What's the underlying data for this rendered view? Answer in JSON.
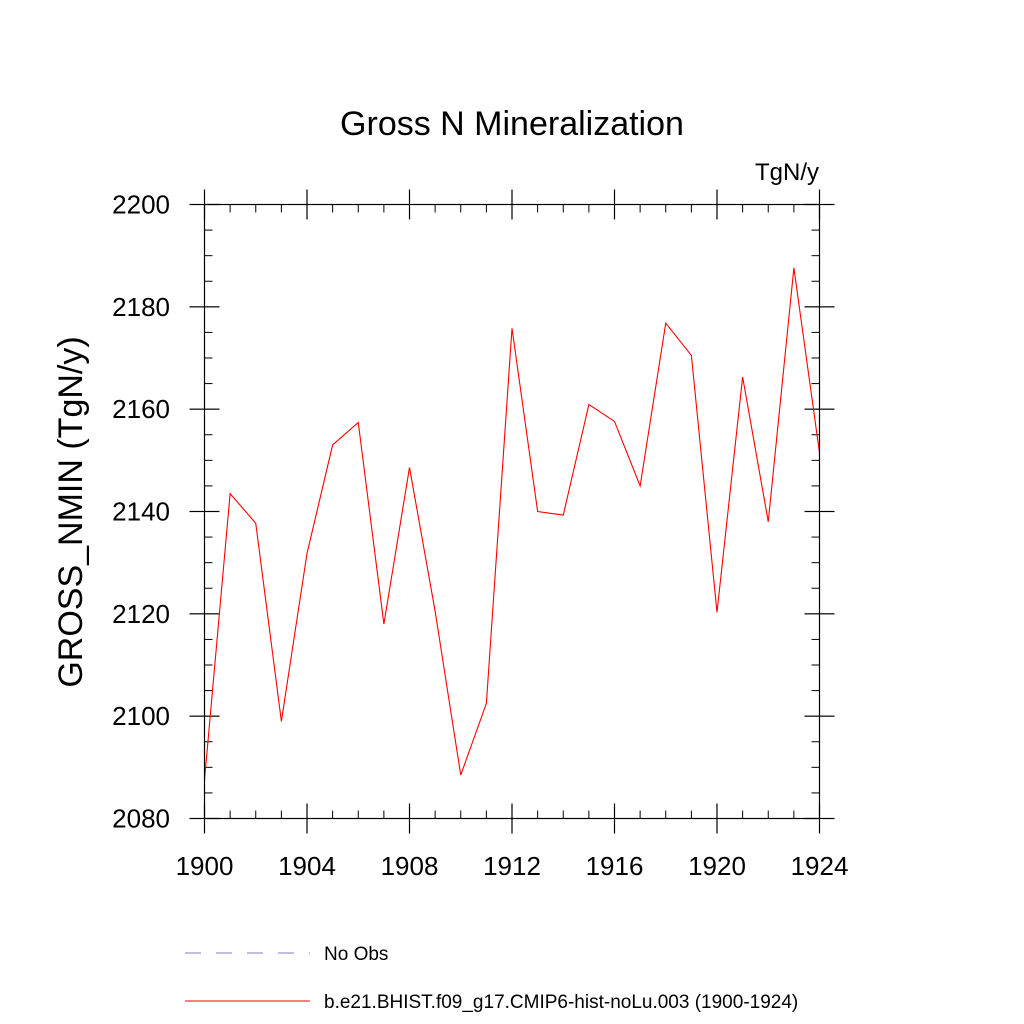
{
  "chart_data": {
    "type": "line",
    "title": "Gross N Mineralization",
    "units": "TgN/y",
    "ylabel": "GROSS_NMIN  (TgN/y)",
    "xlabel": "",
    "xlim": [
      1900,
      1924
    ],
    "ylim": [
      2080,
      2200
    ],
    "x_ticks": [
      1900,
      1904,
      1908,
      1912,
      1916,
      1920,
      1924
    ],
    "y_ticks": [
      2080,
      2100,
      2120,
      2140,
      2160,
      2180,
      2200
    ],
    "x_tick_labels": [
      "1900",
      "1904",
      "1908",
      "1912",
      "1916",
      "1920",
      "1924"
    ],
    "y_tick_labels": [
      "2080",
      "2100",
      "2120",
      "2140",
      "2160",
      "2180",
      "2200"
    ],
    "x_minor_step": 1,
    "y_minor_step": 5,
    "legend_position": "bottom",
    "series": [
      {
        "name": "No Obs",
        "color": "#7b7bd0",
        "style": "dashed",
        "x": [],
        "values": []
      },
      {
        "name": "b.e21.BHIST.f09_g17.CMIP6-hist-noLu.003 (1900-1924)",
        "color": "#ff0000",
        "style": "solid",
        "x": [
          1900,
          1901,
          1902,
          1903,
          1904,
          1905,
          1906,
          1907,
          1908,
          1909,
          1910,
          1911,
          1912,
          1913,
          1914,
          1915,
          1916,
          1917,
          1918,
          1919,
          1920,
          1921,
          1922,
          1923,
          1924
        ],
        "values": [
          2087.5,
          2143.5,
          2137.7,
          2099.0,
          2131.8,
          2153.0,
          2157.4,
          2118.0,
          2148.6,
          2120.5,
          2088.5,
          2102.5,
          2175.8,
          2140.0,
          2139.3,
          2160.9,
          2157.6,
          2145.0,
          2176.8,
          2170.5,
          2120.3,
          2166.3,
          2138.0,
          2187.6,
          2151.5
        ]
      }
    ]
  }
}
